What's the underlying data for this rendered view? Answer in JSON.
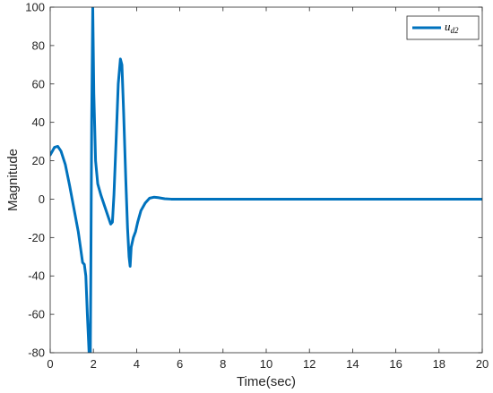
{
  "chart_data": {
    "type": "line",
    "title": "",
    "xlabel": "Time(sec)",
    "ylabel": "Magnitude",
    "xlim": [
      0,
      20
    ],
    "ylim": [
      -80,
      100
    ],
    "xticks": [
      "0",
      "2",
      "4",
      "6",
      "8",
      "10",
      "12",
      "14",
      "16",
      "18",
      "20"
    ],
    "yticks": [
      "100",
      "80",
      "60",
      "40",
      "20",
      "0",
      "-20",
      "-40",
      "-60",
      "-80"
    ],
    "grid": false,
    "legend": {
      "placement": "top-right",
      "base": "u",
      "subscript": "d2"
    },
    "colors": {
      "line": "#0072BD",
      "axes": "#262626"
    },
    "series": [
      {
        "name": "u_d2",
        "x": [
          0,
          0.1,
          0.2,
          0.35,
          0.5,
          0.7,
          0.9,
          1.1,
          1.3,
          1.5,
          1.58,
          1.65,
          1.72,
          1.8,
          1.85,
          1.88,
          1.92,
          1.97,
          2.02,
          2.1,
          2.2,
          2.35,
          2.5,
          2.65,
          2.8,
          2.88,
          2.95,
          3.05,
          3.15,
          3.25,
          3.32,
          3.4,
          3.5,
          3.58,
          3.65,
          3.7,
          3.75,
          3.85,
          3.95,
          4.05,
          4.2,
          4.4,
          4.6,
          4.8,
          5.0,
          5.3,
          5.6,
          6.0,
          8,
          10,
          12,
          14,
          16,
          18,
          20
        ],
        "y": [
          23,
          25,
          27,
          27.5,
          25,
          18,
          7,
          -5,
          -17,
          -33,
          -34,
          -40,
          -60,
          -80,
          -95,
          -40,
          40,
          100,
          55,
          20,
          8,
          2,
          -3,
          -8,
          -13,
          -12,
          2,
          30,
          60,
          73,
          70,
          45,
          10,
          -15,
          -30,
          -35,
          -25,
          -20,
          -17,
          -12,
          -6,
          -2,
          0.5,
          1,
          0.8,
          0.2,
          0,
          0,
          0,
          0,
          0,
          0,
          0,
          0,
          0
        ]
      }
    ]
  }
}
